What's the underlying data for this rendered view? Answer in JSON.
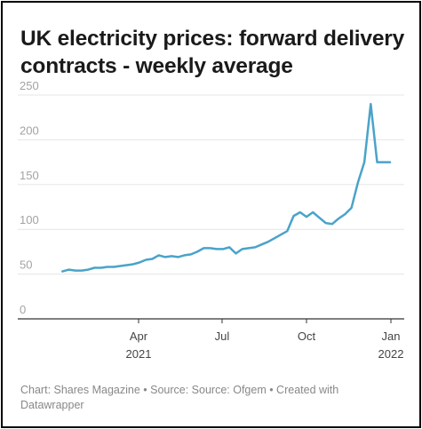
{
  "title": "UK electricity prices: forward delivery contracts - weekly average",
  "footer": "Chart: Shares Magazine • Source: Source: Ofgem • Created with Datawrapper",
  "colors": {
    "line": "#4aa3c9",
    "grid": "#e5e5e5",
    "baseline": "#333333"
  },
  "chart_data": {
    "type": "line",
    "title": "UK electricity prices: forward delivery contracts - weekly average",
    "xlabel": "",
    "ylabel": "",
    "ylim": [
      0,
      250
    ],
    "yticks": [
      0,
      50,
      100,
      150,
      200,
      250
    ],
    "xlim": [
      "2020-12-21",
      "2022-01-10"
    ],
    "xticks": [
      {
        "date": "2021-04-01",
        "label": "Apr",
        "year": "2021"
      },
      {
        "date": "2021-07-01",
        "label": "Jul",
        "year": ""
      },
      {
        "date": "2021-10-01",
        "label": "Oct",
        "year": ""
      },
      {
        "date": "2022-01-01",
        "label": "Jan",
        "year": "2022"
      }
    ],
    "grid": true,
    "series": [
      {
        "x": [
          "2021-01-08",
          "2021-01-15",
          "2021-01-22",
          "2021-01-29",
          "2021-02-05",
          "2021-02-12",
          "2021-02-19",
          "2021-02-26",
          "2021-03-05",
          "2021-03-12",
          "2021-03-19",
          "2021-03-26",
          "2021-04-02",
          "2021-04-09",
          "2021-04-16",
          "2021-04-23",
          "2021-04-30",
          "2021-05-07",
          "2021-05-14",
          "2021-05-21",
          "2021-05-28",
          "2021-06-04",
          "2021-06-11",
          "2021-06-18",
          "2021-06-25",
          "2021-07-02",
          "2021-07-09",
          "2021-07-16",
          "2021-07-23",
          "2021-07-30",
          "2021-08-06",
          "2021-08-13",
          "2021-08-20",
          "2021-08-27",
          "2021-09-03",
          "2021-09-10",
          "2021-09-17",
          "2021-09-24",
          "2021-10-01",
          "2021-10-08",
          "2021-10-15",
          "2021-10-22",
          "2021-10-29",
          "2021-11-05",
          "2021-11-12",
          "2021-11-19",
          "2021-11-26",
          "2021-12-03",
          "2021-12-10",
          "2021-12-17",
          "2021-12-24",
          "2021-12-31"
        ],
        "values": [
          53,
          55,
          54,
          54,
          55,
          57,
          57,
          58,
          58,
          59,
          60,
          61,
          63,
          66,
          67,
          71,
          69,
          70,
          69,
          71,
          72,
          75,
          79,
          79,
          78,
          78,
          80,
          73,
          78,
          79,
          80,
          83,
          86,
          90,
          94,
          98,
          115,
          119,
          114,
          119,
          113,
          107,
          106,
          112,
          117,
          124,
          152,
          175,
          240,
          175,
          175,
          175
        ],
        "type_note": ""
      }
    ]
  }
}
